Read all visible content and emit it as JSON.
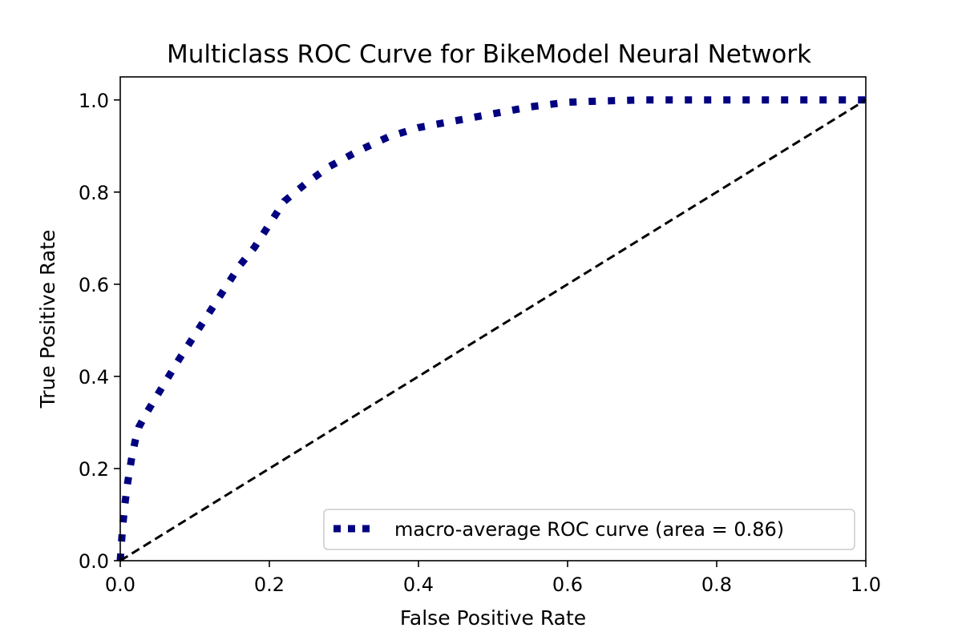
{
  "chart_data": {
    "type": "line",
    "title": "Multiclass ROC Curve for BikeModel Neural Network",
    "xlabel": "False Positive Rate",
    "ylabel": "True Positive Rate",
    "xlim": [
      0.0,
      1.0
    ],
    "ylim": [
      0.0,
      1.05
    ],
    "grid": false,
    "legend_position": "lower-right",
    "x_ticks": [
      0.0,
      0.2,
      0.4,
      0.6,
      0.8,
      1.0
    ],
    "x_tick_labels": [
      "0.0",
      "0.2",
      "0.4",
      "0.6",
      "0.8",
      "1.0"
    ],
    "y_ticks": [
      0.0,
      0.2,
      0.4,
      0.6,
      0.8,
      1.0
    ],
    "y_tick_labels": [
      "0.0",
      "0.2",
      "0.4",
      "0.6",
      "0.8",
      "1.0"
    ],
    "series": [
      {
        "name": "macro-average ROC curve (area = 0.86)",
        "style": "dotted",
        "color": "#000080",
        "x": [
          0.0,
          0.003,
          0.006,
          0.01,
          0.015,
          0.02,
          0.025,
          0.035,
          0.05,
          0.065,
          0.08,
          0.1,
          0.12,
          0.14,
          0.16,
          0.18,
          0.2,
          0.22,
          0.25,
          0.28,
          0.32,
          0.36,
          0.4,
          0.45,
          0.5,
          0.55,
          0.6,
          0.65,
          0.7,
          0.8,
          0.9,
          1.0
        ],
        "y": [
          0.0,
          0.07,
          0.12,
          0.17,
          0.22,
          0.26,
          0.29,
          0.32,
          0.36,
          0.4,
          0.44,
          0.49,
          0.54,
          0.59,
          0.64,
          0.68,
          0.73,
          0.78,
          0.82,
          0.855,
          0.89,
          0.92,
          0.94,
          0.955,
          0.97,
          0.985,
          0.995,
          0.998,
          1.0,
          1.0,
          1.0,
          1.0
        ]
      },
      {
        "style": "dashed",
        "color": "#000000",
        "x": [
          0.0,
          1.0
        ],
        "y": [
          0.0,
          1.0
        ]
      }
    ]
  }
}
